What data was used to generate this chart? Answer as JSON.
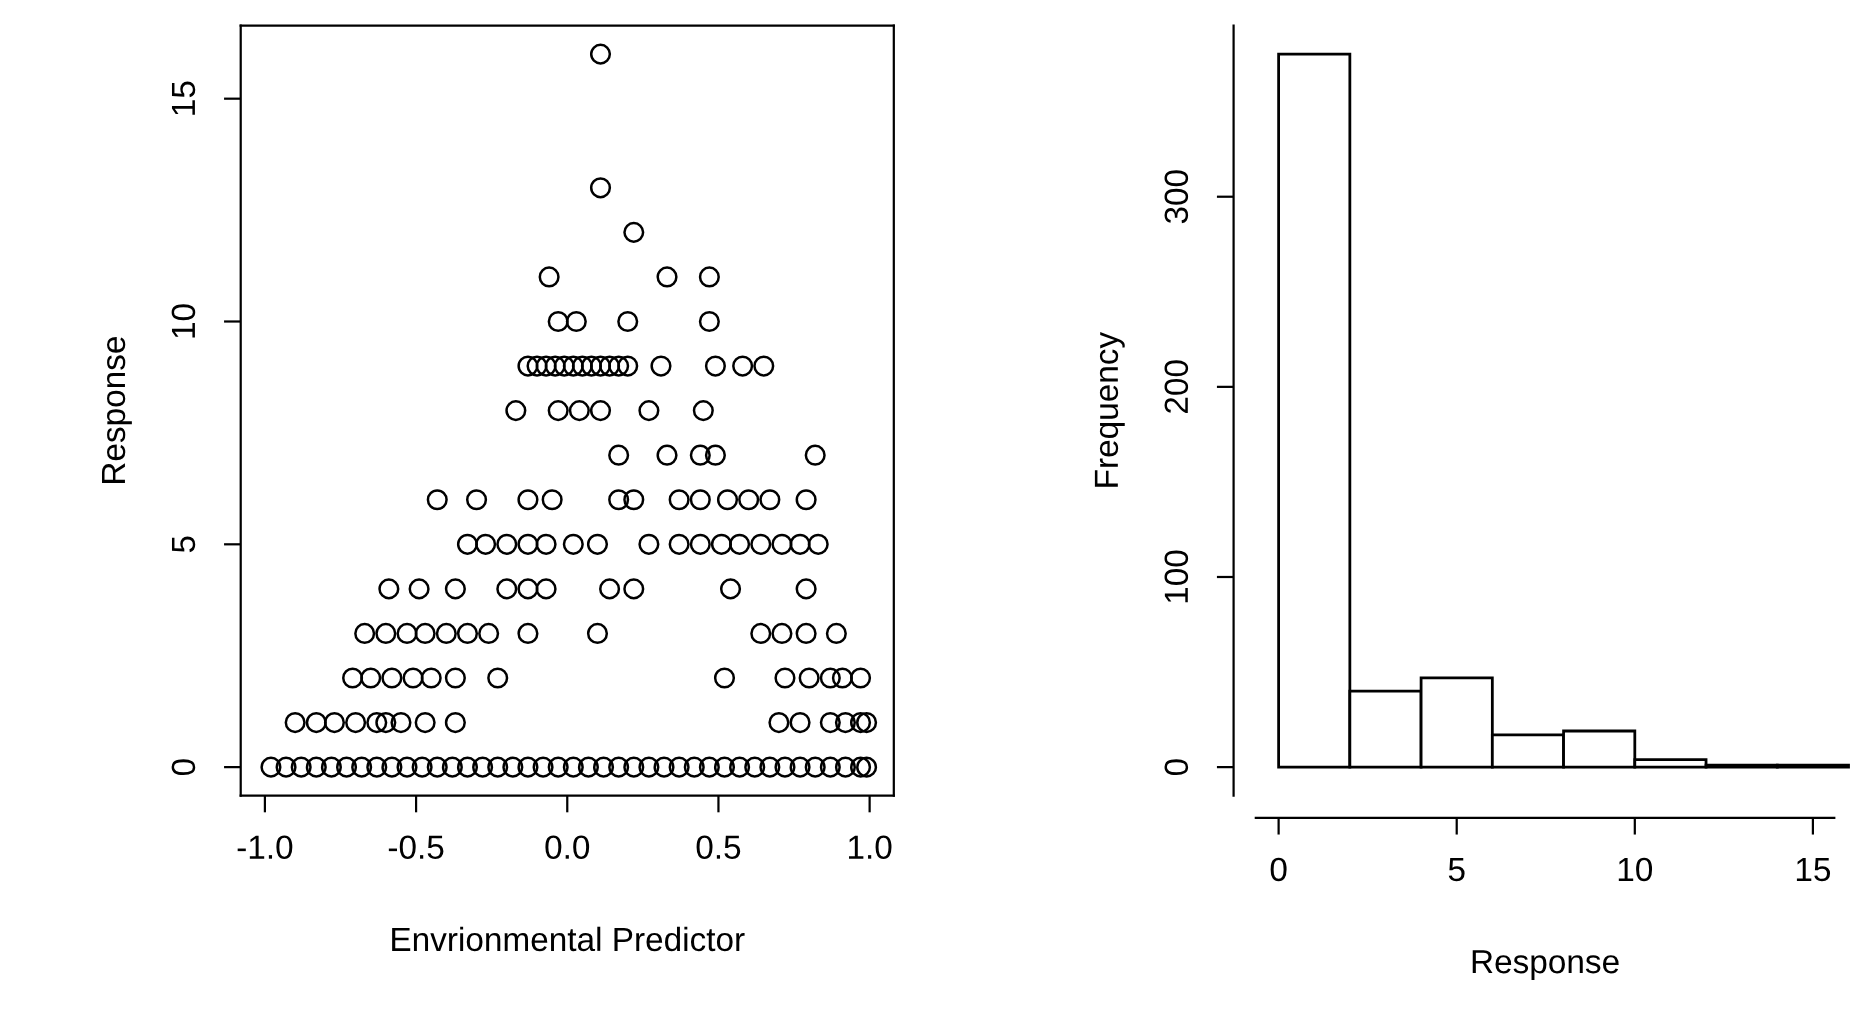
{
  "chart_data": [
    {
      "type": "scatter",
      "xlabel": "Envrionmental Predictor",
      "ylabel": "Response",
      "xlim": [
        -1.08,
        1.08
      ],
      "ylim": [
        -0.64,
        16.64
      ],
      "xticks": [
        {
          "value": -1,
          "label": "-1.0"
        },
        {
          "value": -0.5,
          "label": "-0.5"
        },
        {
          "value": 0,
          "label": "0.0"
        },
        {
          "value": 0.5,
          "label": "0.5"
        },
        {
          "value": 1,
          "label": "1.0"
        }
      ],
      "yticks": [
        0,
        5,
        10,
        15
      ],
      "marker": "circle",
      "grid": false,
      "series": [
        {
          "color": "#000000",
          "x": [
            0.11,
            0.11,
            0.22,
            -0.06,
            0.33,
            0.47,
            -0.03,
            0.03,
            0.2,
            0.47,
            -0.13,
            -0.1,
            -0.07,
            -0.04,
            -0.01,
            0.02,
            0.05,
            0.08,
            0.11,
            0.14,
            0.17,
            0.2,
            0.31,
            0.49,
            0.58,
            0.65,
            -0.17,
            -0.03,
            0.04,
            0.11,
            0.27,
            0.45,
            0.17,
            0.33,
            0.44,
            0.49,
            0.82,
            -0.43,
            -0.3,
            -0.13,
            -0.05,
            0.17,
            0.22,
            0.37,
            0.44,
            0.53,
            0.6,
            0.67,
            0.79,
            -0.33,
            -0.27,
            -0.2,
            -0.13,
            -0.07,
            0.02,
            0.1,
            0.27,
            0.37,
            0.44,
            0.51,
            0.57,
            0.64,
            0.71,
            0.77,
            0.83,
            -0.59,
            -0.49,
            -0.37,
            -0.2,
            -0.13,
            -0.07,
            0.14,
            0.22,
            0.54,
            0.79,
            -0.67,
            -0.6,
            -0.53,
            -0.47,
            -0.4,
            -0.33,
            -0.26,
            -0.13,
            0.1,
            0.64,
            0.71,
            0.79,
            0.89,
            -0.71,
            -0.65,
            -0.58,
            -0.51,
            -0.45,
            -0.37,
            -0.23,
            0.52,
            0.72,
            0.8,
            0.87,
            0.91,
            0.97,
            -0.9,
            -0.83,
            -0.77,
            -0.7,
            -0.63,
            -0.6,
            -0.55,
            -0.47,
            -0.37,
            0.7,
            0.77,
            0.87,
            0.92,
            0.97,
            0.99,
            -0.98,
            -0.93,
            -0.88,
            -0.83,
            -0.78,
            -0.73,
            -0.68,
            -0.63,
            -0.58,
            -0.53,
            -0.48,
            -0.43,
            -0.38,
            -0.33,
            -0.28,
            -0.23,
            -0.18,
            -0.13,
            -0.08,
            -0.03,
            0.02,
            0.07,
            0.12,
            0.17,
            0.22,
            0.27,
            0.32,
            0.37,
            0.42,
            0.47,
            0.52,
            0.57,
            0.62,
            0.67,
            0.72,
            0.77,
            0.82,
            0.87,
            0.92,
            0.97,
            0.99
          ],
          "values": [
            16,
            13,
            12,
            11,
            11,
            11,
            10,
            10,
            10,
            10,
            9,
            9,
            9,
            9,
            9,
            9,
            9,
            9,
            9,
            9,
            9,
            9,
            9,
            9,
            9,
            9,
            8,
            8,
            8,
            8,
            8,
            8,
            7,
            7,
            7,
            7,
            7,
            6,
            6,
            6,
            6,
            6,
            6,
            6,
            6,
            6,
            6,
            6,
            6,
            5,
            5,
            5,
            5,
            5,
            5,
            5,
            5,
            5,
            5,
            5,
            5,
            5,
            5,
            5,
            5,
            4,
            4,
            4,
            4,
            4,
            4,
            4,
            4,
            4,
            4,
            3,
            3,
            3,
            3,
            3,
            3,
            3,
            3,
            3,
            3,
            3,
            3,
            3,
            2,
            2,
            2,
            2,
            2,
            2,
            2,
            2,
            2,
            2,
            2,
            2,
            2,
            1,
            1,
            1,
            1,
            1,
            1,
            1,
            1,
            1,
            1,
            1,
            1,
            1,
            1,
            1,
            0,
            0,
            0,
            0,
            0,
            0,
            0,
            0,
            0,
            0,
            0,
            0,
            0,
            0,
            0,
            0,
            0,
            0,
            0,
            0,
            0,
            0,
            0,
            0,
            0,
            0,
            0,
            0,
            0,
            0,
            0,
            0,
            0,
            0,
            0,
            0,
            0,
            0,
            0,
            0,
            0
          ]
        }
      ]
    },
    {
      "type": "histogram",
      "xlabel": "Response",
      "ylabel": "Frequency",
      "xlim": [
        -0.64,
        15.6
      ],
      "ylim": [
        -15,
        390
      ],
      "xticks": [
        0,
        5,
        10,
        15
      ],
      "yticks": [
        0,
        100,
        200,
        300
      ],
      "grid": false,
      "color": "#ffffff",
      "bins": [
        0,
        2,
        4,
        6,
        8,
        10,
        12,
        14,
        16
      ],
      "values": [
        375,
        40,
        47,
        17,
        19,
        4,
        1,
        1
      ]
    }
  ]
}
